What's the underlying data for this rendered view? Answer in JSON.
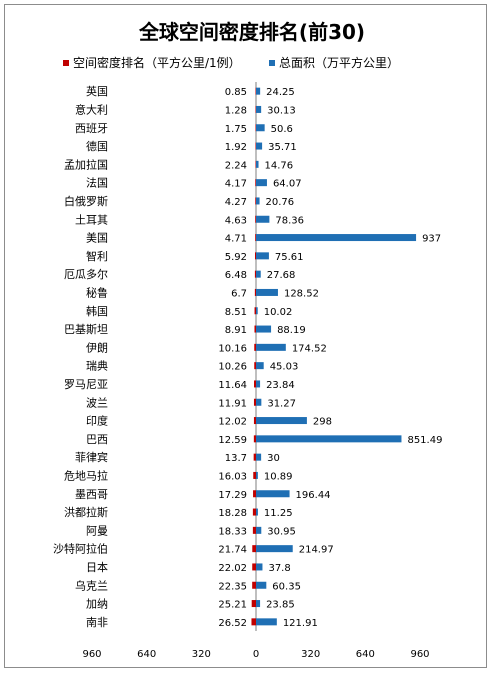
{
  "chart_data": {
    "type": "bar",
    "orientation": "horizontal",
    "title": "全球空间密度排名(前30)",
    "xlim": [
      -960,
      960
    ],
    "x_tick_labels": [
      "960",
      "640",
      "320",
      "0",
      "320",
      "640",
      "960"
    ],
    "x_tick_values": [
      -960,
      -640,
      -320,
      0,
      320,
      640,
      960
    ],
    "legend_position": "top",
    "categories": [
      "英国",
      "意大利",
      "西班牙",
      "德国",
      "孟加拉国",
      "法国",
      "白俄罗斯",
      "土耳其",
      "美国",
      "智利",
      "厄瓜多尔",
      "秘鲁",
      "韩国",
      "巴基斯坦",
      "伊朗",
      "瑞典",
      "罗马尼亚",
      "波兰",
      "印度",
      "巴西",
      "菲律宾",
      "危地马拉",
      "墨西哥",
      "洪都拉斯",
      "阿曼",
      "沙特阿拉伯",
      "日本",
      "乌克兰",
      "加纳",
      "南非"
    ],
    "series": [
      {
        "name": "空间密度排名（平方公里/1例）",
        "color": "#c00000",
        "direction": "left",
        "values": [
          0.85,
          1.28,
          1.75,
          1.92,
          2.24,
          4.17,
          4.27,
          4.63,
          4.71,
          5.92,
          6.48,
          6.7,
          8.51,
          8.91,
          10.16,
          10.26,
          11.64,
          11.91,
          12.02,
          12.59,
          13.7,
          16.03,
          17.29,
          18.28,
          18.33,
          21.74,
          22.02,
          22.35,
          25.21,
          26.52
        ]
      },
      {
        "name": "总面积（万平方公里）",
        "color": "#1f6fb4",
        "direction": "right",
        "values": [
          24.25,
          30.13,
          50.6,
          35.71,
          14.76,
          64.07,
          20.76,
          78.36,
          937,
          75.61,
          27.68,
          128.52,
          10.02,
          88.19,
          174.52,
          45.03,
          23.84,
          31.27,
          298,
          851.49,
          30,
          10.89,
          196.44,
          11.25,
          30.95,
          214.97,
          37.8,
          60.35,
          23.85,
          121.91
        ]
      }
    ]
  }
}
